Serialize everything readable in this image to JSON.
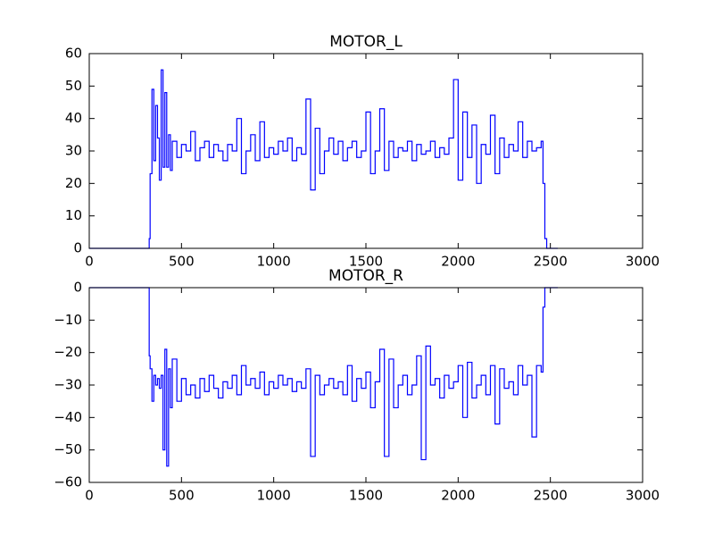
{
  "chart_data": [
    {
      "type": "line",
      "title": "MOTOR_L",
      "drawstyle": "steps",
      "x": [
        0,
        325,
        330,
        340,
        350,
        360,
        370,
        380,
        390,
        400,
        410,
        420,
        430,
        440,
        450,
        475,
        500,
        525,
        550,
        575,
        600,
        625,
        650,
        675,
        700,
        725,
        750,
        775,
        800,
        825,
        850,
        875,
        900,
        925,
        950,
        975,
        1000,
        1025,
        1050,
        1075,
        1100,
        1125,
        1150,
        1175,
        1200,
        1225,
        1250,
        1275,
        1300,
        1325,
        1350,
        1375,
        1400,
        1425,
        1450,
        1475,
        1500,
        1525,
        1550,
        1575,
        1600,
        1625,
        1650,
        1675,
        1700,
        1725,
        1750,
        1775,
        1800,
        1825,
        1850,
        1875,
        1900,
        1925,
        1950,
        1975,
        2000,
        2025,
        2050,
        2075,
        2100,
        2125,
        2150,
        2175,
        2200,
        2225,
        2250,
        2275,
        2300,
        2325,
        2350,
        2375,
        2400,
        2425,
        2450,
        2460,
        2470,
        2480,
        2540
      ],
      "series": [
        {
          "name": "MOTOR_L",
          "color": "#0000ff",
          "values": [
            0,
            3,
            23,
            49,
            27,
            44,
            34,
            21,
            55,
            25,
            48,
            25,
            35,
            24,
            33,
            28,
            32,
            30,
            36,
            27,
            31,
            33,
            28,
            32,
            30,
            27,
            32,
            30,
            40,
            23,
            30,
            35,
            27,
            39,
            28,
            31,
            29,
            33,
            30,
            34,
            27,
            31,
            29,
            46,
            18,
            37,
            23,
            30,
            34,
            29,
            33,
            27,
            31,
            33,
            28,
            30,
            42,
            23,
            30,
            43,
            24,
            33,
            28,
            31,
            30,
            33,
            27,
            32,
            29,
            30,
            33,
            28,
            31,
            29,
            34,
            52,
            21,
            42,
            28,
            38,
            20,
            32,
            29,
            41,
            23,
            34,
            28,
            32,
            30,
            39,
            28,
            33,
            30,
            31,
            33,
            20,
            3,
            0,
            0
          ]
        }
      ],
      "xlim": [
        0,
        3000
      ],
      "xticks": [
        0,
        500,
        1000,
        1500,
        2000,
        2500,
        3000
      ],
      "ylim": [
        0,
        60
      ],
      "yticks": [
        0,
        10,
        20,
        30,
        40,
        50,
        60
      ]
    },
    {
      "type": "line",
      "title": "MOTOR_R",
      "drawstyle": "steps",
      "x": [
        0,
        325,
        330,
        340,
        350,
        360,
        370,
        380,
        390,
        400,
        410,
        420,
        430,
        440,
        450,
        475,
        500,
        525,
        550,
        575,
        600,
        625,
        650,
        675,
        700,
        725,
        750,
        775,
        800,
        825,
        850,
        875,
        900,
        925,
        950,
        975,
        1000,
        1025,
        1050,
        1075,
        1100,
        1125,
        1150,
        1175,
        1200,
        1225,
        1250,
        1275,
        1300,
        1325,
        1350,
        1375,
        1400,
        1425,
        1450,
        1475,
        1500,
        1525,
        1550,
        1575,
        1600,
        1625,
        1650,
        1675,
        1700,
        1725,
        1750,
        1775,
        1800,
        1825,
        1850,
        1875,
        1900,
        1925,
        1950,
        1975,
        2000,
        2025,
        2050,
        2075,
        2100,
        2125,
        2150,
        2175,
        2200,
        2225,
        2250,
        2275,
        2300,
        2325,
        2350,
        2375,
        2400,
        2425,
        2450,
        2460,
        2470,
        2480,
        2540
      ],
      "series": [
        {
          "name": "MOTOR_R",
          "color": "#0000ff",
          "values": [
            0,
            -21,
            -25,
            -35,
            -27,
            -30,
            -28,
            -31,
            -27,
            -50,
            -19,
            -55,
            -25,
            -37,
            -22,
            -35,
            -28,
            -33,
            -30,
            -34,
            -28,
            -32,
            -27,
            -31,
            -34,
            -29,
            -31,
            -27,
            -33,
            -24,
            -30,
            -28,
            -31,
            -26,
            -33,
            -29,
            -31,
            -27,
            -30,
            -28,
            -32,
            -29,
            -31,
            -25,
            -52,
            -27,
            -33,
            -30,
            -28,
            -31,
            -29,
            -33,
            -24,
            -35,
            -28,
            -31,
            -26,
            -37,
            -29,
            -19,
            -52,
            -22,
            -37,
            -30,
            -27,
            -33,
            -30,
            -21,
            -53,
            -18,
            -30,
            -28,
            -34,
            -27,
            -31,
            -29,
            -24,
            -40,
            -23,
            -34,
            -30,
            -27,
            -33,
            -24,
            -42,
            -25,
            -31,
            -29,
            -33,
            -24,
            -30,
            -27,
            -46,
            -24,
            -26,
            -6,
            0,
            0,
            0
          ]
        }
      ],
      "xlim": [
        0,
        3000
      ],
      "xticks": [
        0,
        500,
        1000,
        1500,
        2000,
        2500,
        3000
      ],
      "ylim": [
        -60,
        0
      ],
      "yticks": [
        {
          "value": -60,
          "label": "−60"
        },
        {
          "value": -50,
          "label": "−50"
        },
        {
          "value": -40,
          "label": "−40"
        },
        {
          "value": -30,
          "label": "−30"
        },
        {
          "value": -20,
          "label": "−20"
        },
        {
          "value": -10,
          "label": "−10"
        },
        0
      ]
    }
  ]
}
